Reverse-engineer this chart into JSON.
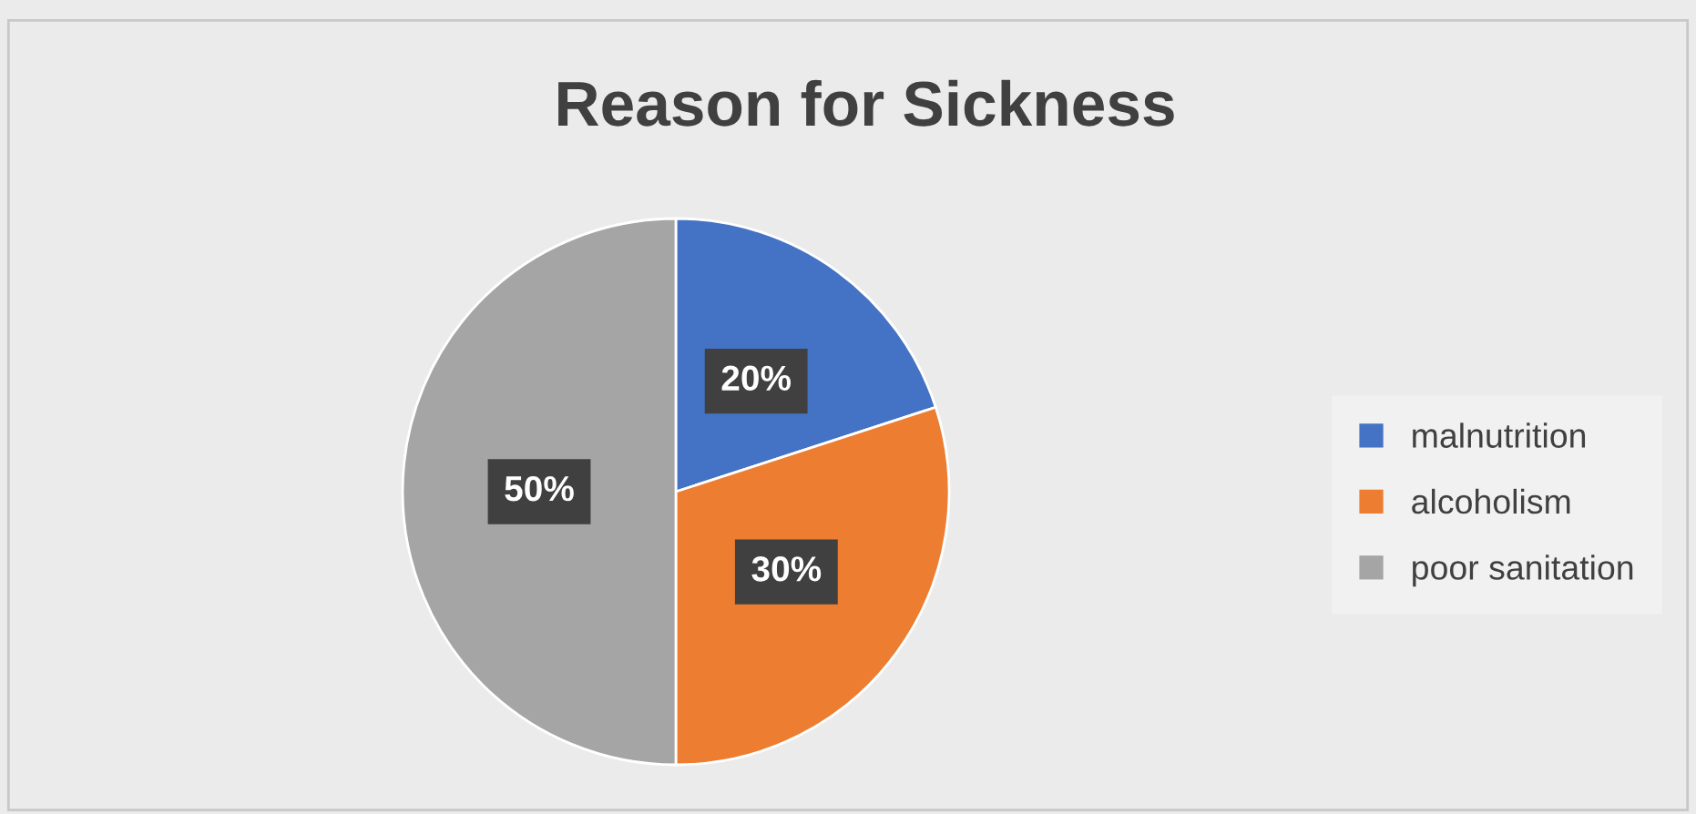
{
  "chart_data": {
    "type": "pie",
    "title": "Reason for Sickness",
    "categories": [
      "malnutrition",
      "alcoholism",
      "poor sanitation"
    ],
    "values": [
      20,
      30,
      50
    ],
    "colors": [
      "#4472c4",
      "#ed7d31",
      "#a5a5a5"
    ],
    "value_labels": [
      "20%",
      "30%",
      "50%"
    ],
    "legend": "right"
  }
}
